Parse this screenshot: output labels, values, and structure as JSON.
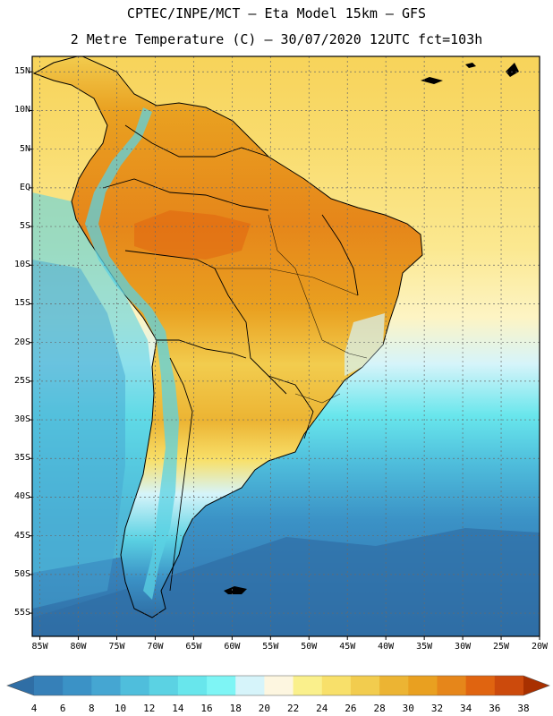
{
  "header": {
    "line1": "CPTEC/INPE/MCT –  Eta Model 15km – GFS",
    "line2": "2 Metre Temperature (C) – 30/07/2020 12UTC fct=103h"
  },
  "axes": {
    "lat_labels": [
      "15N",
      "10N",
      "5N",
      "EQ",
      "5S",
      "10S",
      "15S",
      "20S",
      "25S",
      "30S",
      "35S",
      "40S",
      "45S",
      "50S",
      "55S"
    ],
    "lat_values": [
      15,
      10,
      5,
      0,
      -5,
      -10,
      -15,
      -20,
      -25,
      -30,
      -35,
      -40,
      -45,
      -50,
      -55
    ],
    "lon_labels": [
      "85W",
      "80W",
      "75W",
      "70W",
      "65W",
      "60W",
      "55W",
      "50W",
      "45W",
      "40W",
      "35W",
      "30W",
      "25W",
      "20W"
    ],
    "lon_values": [
      -85,
      -80,
      -75,
      -70,
      -65,
      -60,
      -55,
      -50,
      -45,
      -40,
      -35,
      -30,
      -25,
      -20
    ],
    "lat_range": [
      -58,
      17
    ],
    "lon_range": [
      -86,
      -20
    ]
  },
  "colorbar": {
    "ticks": [
      "4",
      "6",
      "8",
      "10",
      "12",
      "14",
      "16",
      "18",
      "20",
      "22",
      "24",
      "26",
      "28",
      "30",
      "32",
      "34",
      "36",
      "38"
    ],
    "colors": [
      "#2f6ea5",
      "#3680b8",
      "#3b92c6",
      "#45a6d2",
      "#4fbedc",
      "#5bd2e3",
      "#68e6ec",
      "#7ef5f5",
      "#d6f4fa",
      "#fdf6e0",
      "#faf08c",
      "#f8e06a",
      "#f2cc4e",
      "#ecb433",
      "#e9a020",
      "#e6861a",
      "#e06410",
      "#cc4a0c",
      "#b33c0e",
      "#a83000"
    ]
  }
}
